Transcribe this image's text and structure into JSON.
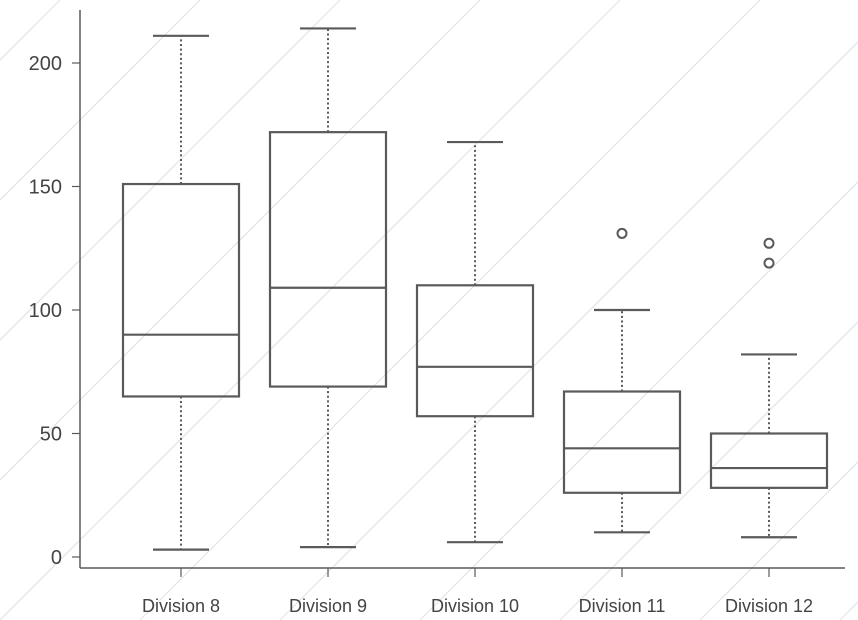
{
  "chart_data": {
    "type": "box",
    "title": "",
    "xlabel": "",
    "ylabel": "",
    "ylim": [
      -5,
      225
    ],
    "y_ticks": [
      0,
      50,
      100,
      150,
      200
    ],
    "categories": [
      "Division 8",
      "Division 9",
      "Division 10",
      "Division 11",
      "Division 12"
    ],
    "boxes": [
      {
        "category": "Division 8",
        "whisker_low": 3,
        "q1": 65,
        "median": 90,
        "q3": 151,
        "whisker_high": 211,
        "outliers": []
      },
      {
        "category": "Division 9",
        "whisker_low": 4,
        "q1": 69,
        "median": 109,
        "q3": 172,
        "whisker_high": 214,
        "outliers": []
      },
      {
        "category": "Division 10",
        "whisker_low": 6,
        "q1": 57,
        "median": 77,
        "q3": 110,
        "whisker_high": 168,
        "outliers": []
      },
      {
        "category": "Division 11",
        "whisker_low": 10,
        "q1": 26,
        "median": 44,
        "q3": 67,
        "whisker_high": 100,
        "outliers": [
          131
        ]
      },
      {
        "category": "Division 12",
        "whisker_low": 8,
        "q1": 28,
        "median": 36,
        "q3": 50,
        "whisker_high": 82,
        "outliers": [
          119,
          127
        ]
      }
    ],
    "grid": false,
    "legend": "none",
    "colors": {
      "stroke": "#5a5a5a",
      "text": "#444444",
      "background_pattern": "#e3e3ea"
    }
  }
}
